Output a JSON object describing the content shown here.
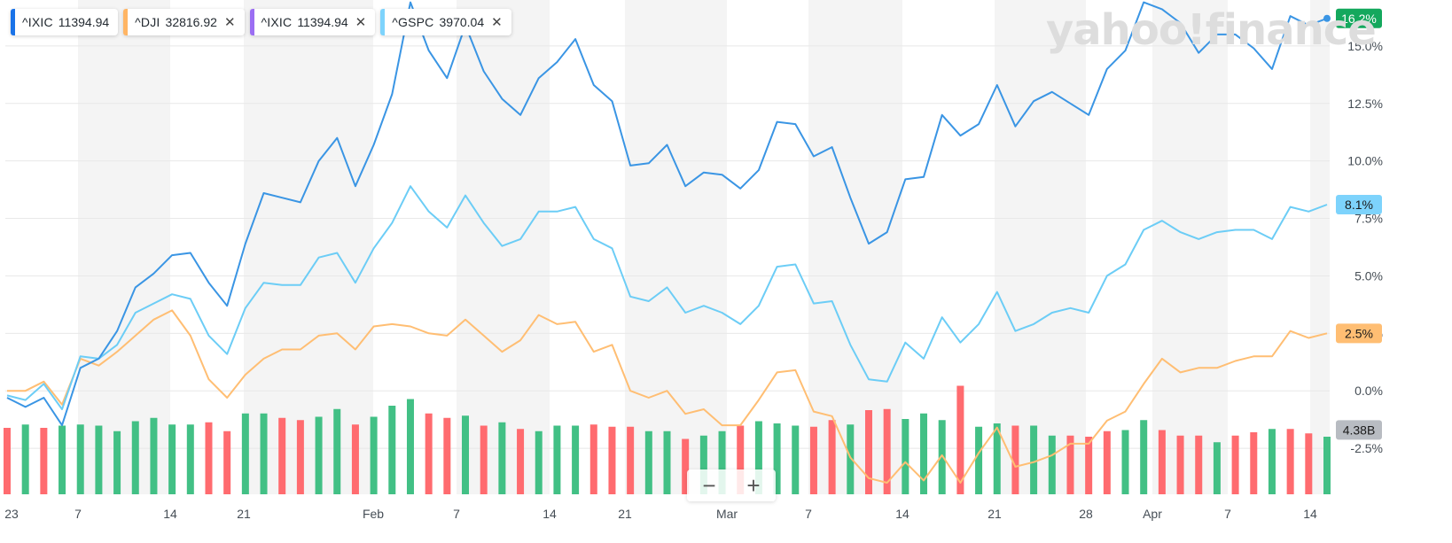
{
  "legend": [
    {
      "symbol": "^IXIC",
      "value": "11394.94",
      "color": "#1a73e8",
      "closable": false
    },
    {
      "symbol": "^DJI",
      "value": "32816.92",
      "color": "#ffb564",
      "closable": true
    },
    {
      "symbol": "^IXIC",
      "value": "11394.94",
      "color": "#9b6ef3",
      "closable": true
    },
    {
      "symbol": "^GSPC",
      "value": "3970.04",
      "color": "#7dd3fc",
      "closable": true
    }
  ],
  "close_glyph": "✕",
  "watermark": "yahoo!finance",
  "zoom": {
    "minus": "−",
    "plus": "+"
  },
  "colors": {
    "ixic": "#3a95e4",
    "gspc": "#6ccdf6",
    "dji": "#ffbe73",
    "vol_up": "#42c085",
    "vol_down": "#ff6b6f",
    "grid_band": "#f4f4f4"
  },
  "chart_data": {
    "type": "line",
    "x_axis_labels": [
      "23",
      "7",
      "14",
      "21",
      "Feb",
      "7",
      "14",
      "21",
      "Mar",
      "7",
      "14",
      "21",
      "28",
      "Apr",
      "7",
      "14"
    ],
    "y_ticks": [
      "15.0%",
      "12.5%",
      "10.0%",
      "7.5%",
      "5.0%",
      "2.5%",
      "0.0%",
      "-2.5%"
    ],
    "ylim": [
      -4.5,
      17
    ],
    "series": [
      {
        "name": "^IXIC",
        "end_label": "16.2%",
        "values": [
          -0.3,
          -0.7,
          -0.3,
          -1.5,
          1.0,
          1.4,
          2.6,
          4.5,
          5.1,
          5.9,
          6.0,
          4.7,
          3.7,
          6.4,
          8.6,
          8.4,
          8.2,
          10.0,
          11.0,
          8.9,
          10.7,
          12.9,
          16.9,
          14.8,
          13.6,
          15.9,
          13.9,
          12.7,
          12.0,
          13.6,
          14.3,
          15.3,
          13.3,
          12.6,
          9.8,
          9.9,
          10.7,
          8.9,
          9.5,
          9.4,
          8.8,
          9.6,
          11.7,
          11.6,
          10.2,
          10.6,
          8.4,
          6.4,
          6.9,
          9.2,
          9.3,
          12.0,
          11.1,
          11.6,
          13.3,
          11.5,
          12.6,
          13.0,
          12.5,
          12.0,
          14.0,
          14.8,
          16.9,
          16.6,
          16.0,
          14.7,
          15.5,
          15.5,
          14.9,
          14.0,
          16.3,
          15.9,
          16.2
        ]
      },
      {
        "name": "^GSPC",
        "end_label": "8.1%",
        "values": [
          -0.2,
          -0.4,
          0.3,
          -0.8,
          1.5,
          1.4,
          2.0,
          3.4,
          3.8,
          4.2,
          4.0,
          2.4,
          1.6,
          3.6,
          4.7,
          4.6,
          4.6,
          5.8,
          6.0,
          4.7,
          6.2,
          7.3,
          8.9,
          7.8,
          7.1,
          8.5,
          7.3,
          6.3,
          6.6,
          7.8,
          7.8,
          8.0,
          6.6,
          6.2,
          4.1,
          3.9,
          4.5,
          3.4,
          3.7,
          3.4,
          2.9,
          3.7,
          5.4,
          5.5,
          3.8,
          3.9,
          2.0,
          0.5,
          0.4,
          2.1,
          1.4,
          3.2,
          2.1,
          2.9,
          4.3,
          2.6,
          2.9,
          3.4,
          3.6,
          3.4,
          5.0,
          5.5,
          7.0,
          7.4,
          6.9,
          6.6,
          6.9,
          7.0,
          7.0,
          6.6,
          8.0,
          7.8,
          8.1
        ]
      },
      {
        "name": "^DJI",
        "end_label": "2.5%",
        "values": [
          0.0,
          0.0,
          0.4,
          -0.6,
          1.4,
          1.1,
          1.7,
          2.4,
          3.1,
          3.5,
          2.4,
          0.5,
          -0.3,
          0.7,
          1.4,
          1.8,
          1.8,
          2.4,
          2.5,
          1.8,
          2.8,
          2.9,
          2.8,
          2.5,
          2.4,
          3.1,
          2.4,
          1.7,
          2.2,
          3.3,
          2.9,
          3.0,
          1.7,
          2.0,
          0.0,
          -0.3,
          0.0,
          -1.0,
          -0.8,
          -1.5,
          -1.5,
          -0.4,
          0.8,
          0.9,
          -0.9,
          -1.1,
          -2.9,
          -3.8,
          -4.0,
          -3.1,
          -3.9,
          -2.8,
          -4.0,
          -2.7,
          -1.6,
          -3.3,
          -3.1,
          -2.8,
          -2.3,
          -2.3,
          -1.3,
          -0.9,
          0.3,
          1.4,
          0.8,
          1.0,
          1.0,
          1.3,
          1.5,
          1.5,
          2.6,
          2.3,
          2.5
        ]
      }
    ],
    "volume": {
      "end_label": "4.38B",
      "values": [
        0.6,
        0.63,
        0.6,
        0.62,
        0.63,
        0.62,
        0.57,
        0.66,
        0.69,
        0.63,
        0.63,
        0.65,
        0.57,
        0.73,
        0.73,
        0.69,
        0.67,
        0.7,
        0.77,
        0.63,
        0.7,
        0.8,
        0.86,
        0.73,
        0.69,
        0.71,
        0.62,
        0.65,
        0.59,
        0.57,
        0.62,
        0.62,
        0.63,
        0.61,
        0.61,
        0.57,
        0.57,
        0.5,
        0.53,
        0.57,
        0.62,
        0.66,
        0.64,
        0.62,
        0.61,
        0.67,
        0.63,
        0.76,
        0.77,
        0.68,
        0.73,
        0.67,
        0.98,
        0.61,
        0.64,
        0.62,
        0.62,
        0.53,
        0.53,
        0.52,
        0.57,
        0.58,
        0.67,
        0.58,
        0.53,
        0.53,
        0.47,
        0.53,
        0.56,
        0.59,
        0.59,
        0.55,
        0.52
      ],
      "direction": [
        "d",
        "u",
        "d",
        "u",
        "u",
        "u",
        "u",
        "u",
        "u",
        "u",
        "u",
        "d",
        "d",
        "u",
        "u",
        "d",
        "d",
        "u",
        "u",
        "d",
        "u",
        "u",
        "u",
        "d",
        "d",
        "u",
        "d",
        "u",
        "d",
        "u",
        "u",
        "u",
        "d",
        "d",
        "d",
        "u",
        "u",
        "d",
        "u",
        "u",
        "d",
        "u",
        "u",
        "u",
        "d",
        "d",
        "u",
        "d",
        "d",
        "u",
        "u",
        "u",
        "d",
        "u",
        "u",
        "d",
        "u",
        "u",
        "d",
        "d",
        "d",
        "u",
        "u",
        "d",
        "d",
        "d",
        "u",
        "d",
        "d",
        "u",
        "d",
        "d",
        "u"
      ]
    }
  }
}
